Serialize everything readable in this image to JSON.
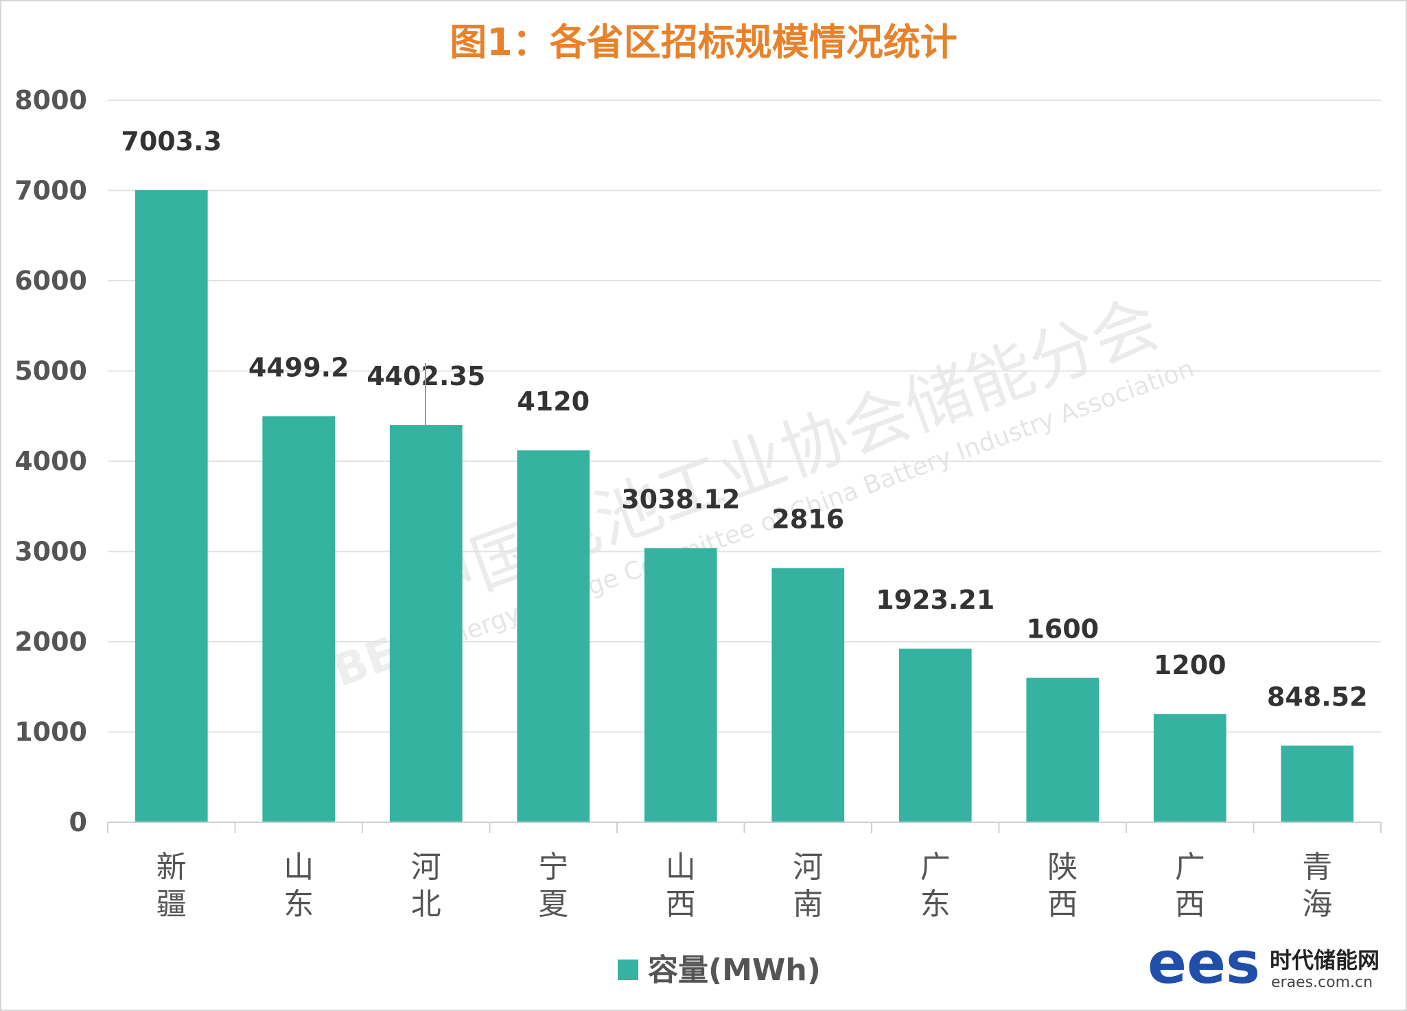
{
  "chart_data": {
    "type": "bar",
    "title": "图1：各省区招标规模情况统计",
    "categories": [
      "新疆",
      "山东",
      "河北",
      "宁夏",
      "山西",
      "河南",
      "广东",
      "陕西",
      "广西",
      "青海"
    ],
    "series": [
      {
        "name": "容量(MWh)",
        "values": [
          7003.3,
          4499.2,
          4402.35,
          4120,
          3038.12,
          2816,
          1923.21,
          1600,
          1200,
          848.52
        ],
        "labels": [
          "7003.3",
          "4499.2",
          "4402.35",
          "4120",
          "3038.12",
          "2816",
          "1923.21",
          "1600",
          "1200",
          "848.52"
        ],
        "color": "#35b3a0"
      }
    ],
    "ylim": [
      0,
      8000
    ],
    "yticks": [
      "0",
      "1000",
      "2000",
      "3000",
      "4000",
      "5000",
      "6000",
      "7000",
      "8000"
    ],
    "grid": true,
    "legend_position": "bottom"
  },
  "watermark": {
    "cn": "中国电池工业协会储能分会",
    "en": "Energy Storage Committee of China Battery Industry Association",
    "logo": "CBES"
  },
  "brand": {
    "mark": "ees",
    "name": "时代储能网",
    "url": "eraes.com.cn"
  },
  "colors": {
    "bar": "#35b3a0",
    "title": "#e8822a",
    "grid": "#e3e3e3"
  }
}
